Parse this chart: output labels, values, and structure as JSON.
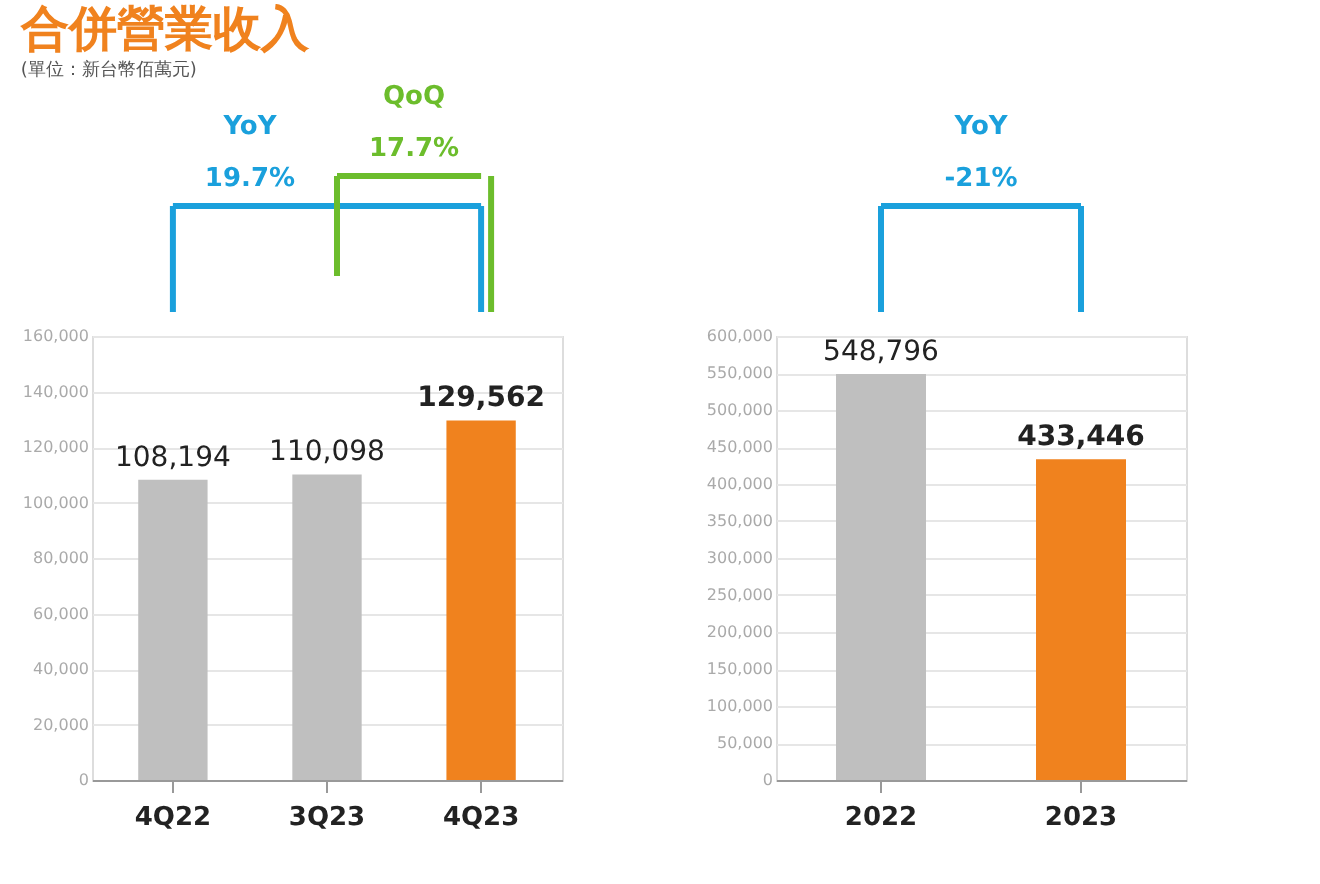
{
  "chart_data": [
    {
      "type": "bar",
      "title": "合併營業收入",
      "subtitle": "(單位：新台幣佰萬元)",
      "categories": [
        "4Q22",
        "3Q23",
        "4Q23"
      ],
      "values": [
        108194,
        110098,
        129562
      ],
      "value_labels": [
        "108,194",
        "110,098",
        "129,562"
      ],
      "colors": [
        "#bfbfbf",
        "#bfbfbf",
        "#f0821e"
      ],
      "ylim": [
        0,
        160000
      ],
      "yticks": [
        {
          "value": 0,
          "label": "0"
        },
        {
          "value": 20000,
          "label": "20,000"
        },
        {
          "value": 40000,
          "label": "40,000"
        },
        {
          "value": 60000,
          "label": "60,000"
        },
        {
          "value": 80000,
          "label": "80,000"
        },
        {
          "value": 100000,
          "label": "100,000"
        },
        {
          "value": 120000,
          "label": "120,000"
        },
        {
          "value": 140000,
          "label": "140,000"
        },
        {
          "value": 160000,
          "label": "160,000"
        }
      ],
      "grid": "y",
      "data_labels": true,
      "annotations": [
        "YoY",
        "19.7%",
        "QoQ",
        "17.7%"
      ]
    },
    {
      "type": "bar",
      "categories": [
        "2022",
        "2023"
      ],
      "values": [
        548796,
        433446
      ],
      "value_labels": [
        "548,796",
        "433,446"
      ],
      "colors": [
        "#bfbfbf",
        "#f0821e"
      ],
      "ylim": [
        0,
        600000
      ],
      "yticks": [
        {
          "value": 0,
          "label": "0"
        },
        {
          "value": 50000,
          "label": "50,000"
        },
        {
          "value": 100000,
          "label": "100,000"
        },
        {
          "value": 150000,
          "label": "150,000"
        },
        {
          "value": 200000,
          "label": "200,000"
        },
        {
          "value": 250000,
          "label": "250,000"
        },
        {
          "value": 300000,
          "label": "300,000"
        },
        {
          "value": 350000,
          "label": "350,000"
        },
        {
          "value": 400000,
          "label": "400,000"
        },
        {
          "value": 450000,
          "label": "450,000"
        },
        {
          "value": 500000,
          "label": "500,000"
        },
        {
          "value": 550000,
          "label": "550,000"
        },
        {
          "value": 600000,
          "label": "600,000"
        }
      ],
      "grid": "y",
      "data_labels": true,
      "annotations": [
        "YoY",
        "-21%"
      ]
    }
  ]
}
